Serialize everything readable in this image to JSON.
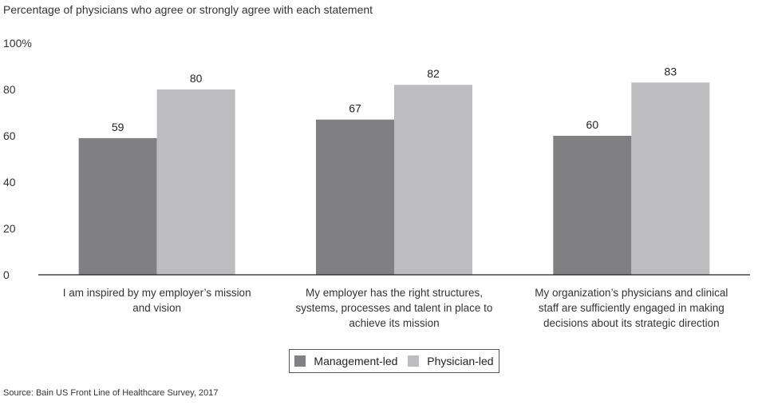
{
  "title": "Percentage of physicians who agree or strongly agree with each statement",
  "source": "Source: Bain US Front Line of Healthcare Survey, 2017",
  "colors": {
    "management": "#808083",
    "physician": "#bdbdbf",
    "axis": "#222222"
  },
  "chart_data": {
    "type": "bar",
    "categories": [
      [
        "I am inspired by my employer’s mission",
        "and vision"
      ],
      [
        "My employer has the right structures,",
        "systems, processes and talent in place to",
        "achieve its mission"
      ],
      [
        "My organization’s physicians and clinical",
        "staff are sufficiently engaged in making",
        "decisions about its strategic direction"
      ]
    ],
    "series": [
      {
        "name": "Management-led",
        "values": [
          59,
          67,
          60
        ]
      },
      {
        "name": "Physician-led",
        "values": [
          80,
          82,
          83
        ]
      }
    ],
    "yticks": [
      "0",
      "20",
      "40",
      "60",
      "80",
      "100%"
    ],
    "ylim": [
      0,
      100
    ],
    "legend_position": "bottom-center"
  }
}
